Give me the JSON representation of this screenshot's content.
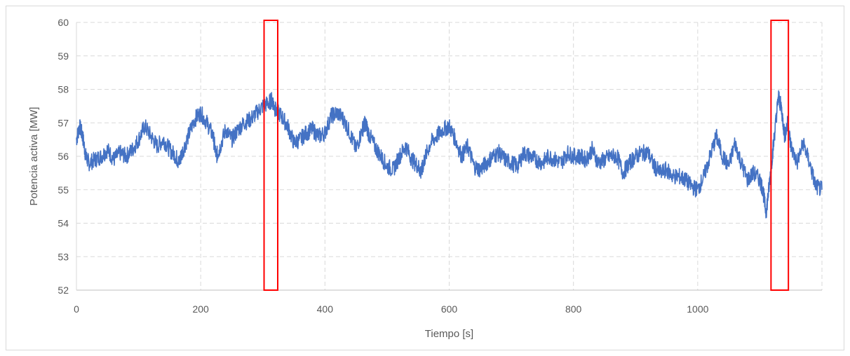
{
  "chart_data": {
    "type": "line",
    "title": "",
    "xlabel": "Tiempo [s]",
    "ylabel": "Potencia activa [MW]",
    "xlim": [
      0,
      1200
    ],
    "ylim": [
      52,
      60
    ],
    "x_ticks": [
      0,
      200,
      400,
      600,
      800,
      1000
    ],
    "x_tick_labels": [
      "0",
      "200",
      "400",
      "600",
      "800",
      "1000"
    ],
    "y_ticks": [
      52,
      53,
      54,
      55,
      56,
      57,
      58,
      59,
      60
    ],
    "y_tick_labels": [
      "52",
      "53",
      "54",
      "55",
      "56",
      "57",
      "58",
      "59",
      "60"
    ],
    "grid": true,
    "grid_style": "dashed",
    "legend": "none",
    "series": [
      {
        "color": "#4472c4",
        "x": [
          0,
          5,
          10,
          15,
          20,
          30,
          40,
          50,
          60,
          70,
          80,
          90,
          100,
          110,
          120,
          130,
          140,
          150,
          160,
          165,
          170,
          180,
          190,
          200,
          210,
          220,
          225,
          230,
          240,
          250,
          260,
          270,
          280,
          290,
          300,
          310,
          315,
          320,
          330,
          340,
          350,
          360,
          370,
          380,
          390,
          400,
          410,
          420,
          430,
          440,
          450,
          460,
          465,
          470,
          480,
          490,
          500,
          510,
          520,
          530,
          540,
          550,
          555,
          560,
          570,
          580,
          590,
          600,
          610,
          620,
          630,
          640,
          650,
          660,
          670,
          680,
          690,
          700,
          710,
          720,
          730,
          740,
          750,
          760,
          770,
          780,
          790,
          800,
          810,
          820,
          830,
          840,
          850,
          860,
          870,
          880,
          890,
          900,
          910,
          920,
          930,
          940,
          950,
          960,
          970,
          980,
          990,
          1000,
          1010,
          1020,
          1030,
          1040,
          1050,
          1060,
          1070,
          1080,
          1090,
          1100,
          1105,
          1110,
          1115,
          1120,
          1125,
          1130,
          1135,
          1140,
          1145,
          1150,
          1160,
          1170,
          1180,
          1190,
          1200
        ],
        "values": [
          56.5,
          56.9,
          56.6,
          56.0,
          55.8,
          55.9,
          56.0,
          56.2,
          55.9,
          56.1,
          56.0,
          56.2,
          56.5,
          56.9,
          56.6,
          56.3,
          56.5,
          56.2,
          56.0,
          55.8,
          56.1,
          56.6,
          57.1,
          57.3,
          57.0,
          56.6,
          56.0,
          56.2,
          56.8,
          56.5,
          56.8,
          57.0,
          57.1,
          57.3,
          57.5,
          57.6,
          57.7,
          57.4,
          57.2,
          56.9,
          56.4,
          56.5,
          56.7,
          56.8,
          56.6,
          56.7,
          57.2,
          57.3,
          57.1,
          56.7,
          56.2,
          56.8,
          57.0,
          56.7,
          56.3,
          56.0,
          55.7,
          55.6,
          56.0,
          56.3,
          55.9,
          55.7,
          55.5,
          55.9,
          56.4,
          56.6,
          56.8,
          56.9,
          56.5,
          56.0,
          56.3,
          55.7,
          55.6,
          55.8,
          56.0,
          56.1,
          55.9,
          55.8,
          55.7,
          56.1,
          56.0,
          55.9,
          55.8,
          56.0,
          55.9,
          55.8,
          56.1,
          56.0,
          56.0,
          55.9,
          56.2,
          55.8,
          55.9,
          56.0,
          56.0,
          55.5,
          55.8,
          56.0,
          56.1,
          56.1,
          55.7,
          55.5,
          55.6,
          55.4,
          55.4,
          55.3,
          55.1,
          55.0,
          55.4,
          56.0,
          56.6,
          56.0,
          55.7,
          56.4,
          55.8,
          55.3,
          55.5,
          55.3,
          55.0,
          54.3,
          55.1,
          56.0,
          56.9,
          57.8,
          57.4,
          56.6,
          57.0,
          56.3,
          55.8,
          56.4,
          55.8,
          55.1,
          55.0
        ]
      }
    ],
    "highlight_boxes": [
      {
        "x_start": 302,
        "x_end": 324,
        "y_start": 52,
        "y_end": 60,
        "color": "#ff0000"
      },
      {
        "x_start": 1118,
        "x_end": 1146,
        "y_start": 52,
        "y_end": 60,
        "color": "#ff0000"
      }
    ]
  }
}
